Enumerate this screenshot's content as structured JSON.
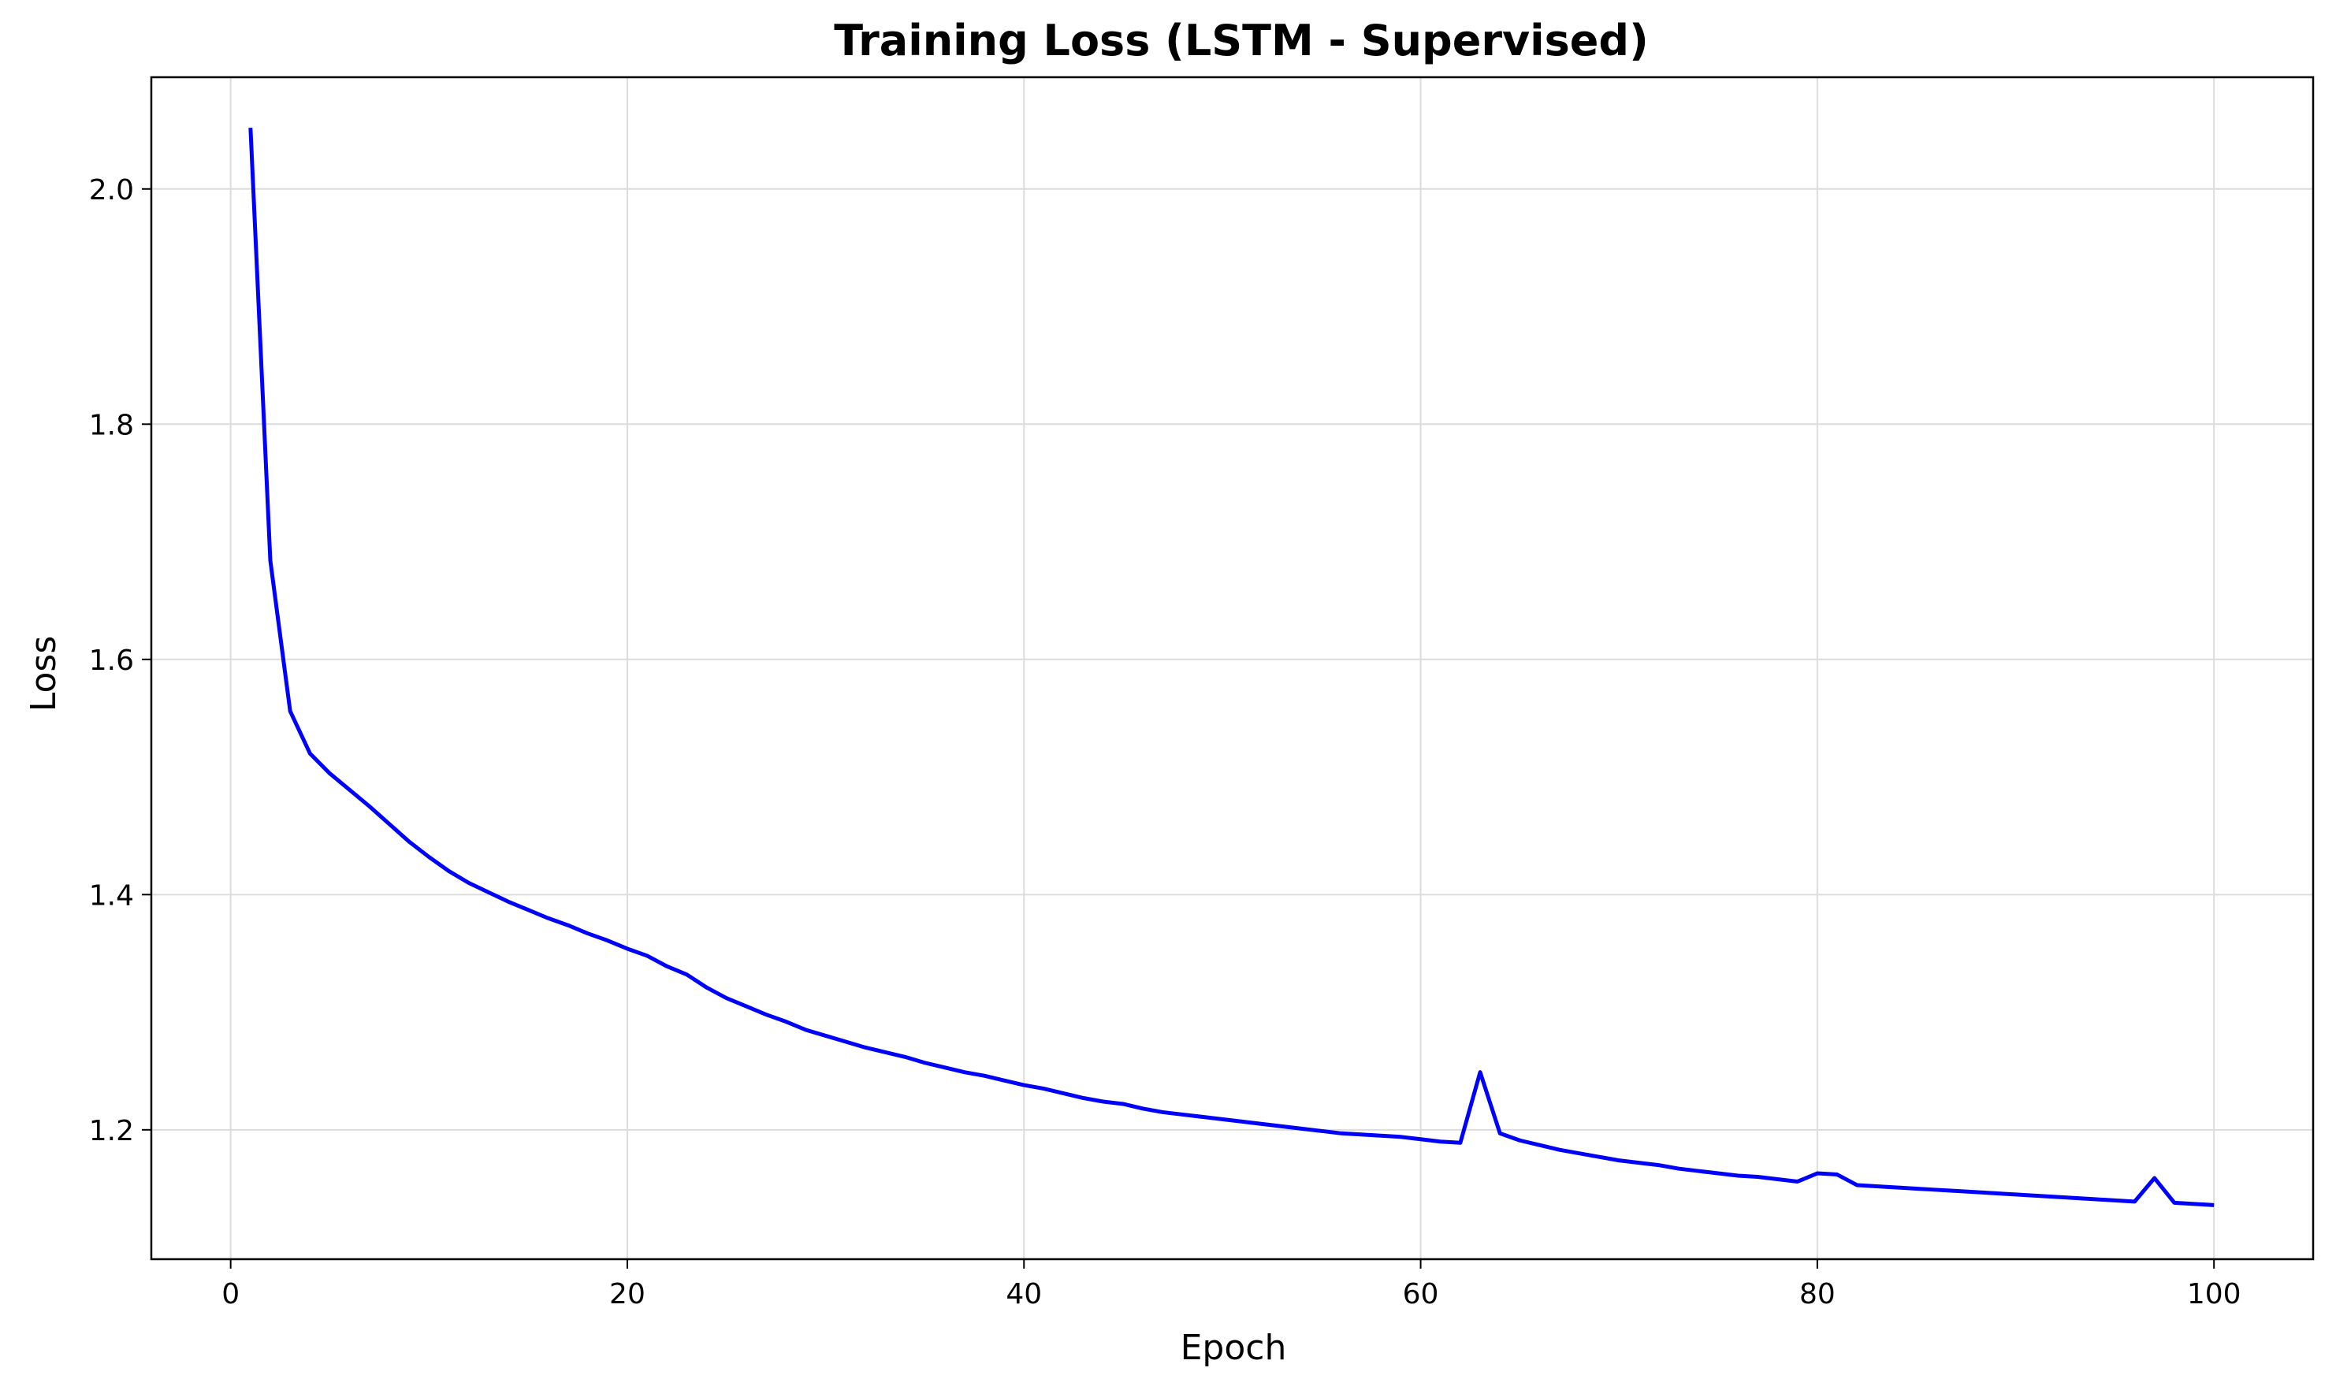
{
  "chart_data": {
    "type": "line",
    "title": "Training Loss (LSTM - Supervised)",
    "xlabel": "Epoch",
    "ylabel": "Loss",
    "xlim": [
      -4,
      105
    ],
    "ylim": [
      1.09,
      2.095
    ],
    "xticks": [
      0,
      20,
      40,
      60,
      80,
      100
    ],
    "yticks": [
      1.2,
      1.4,
      1.6,
      1.8,
      2.0
    ],
    "xtick_labels": [
      "0",
      "20",
      "40",
      "60",
      "80",
      "100"
    ],
    "ytick_labels": [
      "1.2",
      "1.4",
      "1.6",
      "1.8",
      "2.0"
    ],
    "grid": true,
    "series": [
      {
        "color": "#0000ff",
        "x": [
          1,
          2,
          3,
          4,
          5,
          6,
          7,
          8,
          9,
          10,
          11,
          12,
          13,
          14,
          15,
          16,
          17,
          18,
          19,
          20,
          21,
          22,
          23,
          24,
          25,
          26,
          27,
          28,
          29,
          30,
          31,
          32,
          33,
          34,
          35,
          36,
          37,
          38,
          39,
          40,
          41,
          42,
          43,
          44,
          45,
          46,
          47,
          48,
          49,
          50,
          51,
          52,
          53,
          54,
          55,
          56,
          57,
          58,
          59,
          60,
          61,
          62,
          63,
          64,
          65,
          66,
          67,
          68,
          69,
          70,
          71,
          72,
          73,
          74,
          75,
          76,
          77,
          78,
          79,
          80,
          81,
          82,
          83,
          84,
          85,
          86,
          87,
          88,
          89,
          90,
          91,
          92,
          93,
          94,
          95,
          96,
          97,
          98,
          99,
          100
        ],
        "values": [
          2.052,
          1.684,
          1.556,
          1.52,
          1.503,
          1.489,
          1.475,
          1.46,
          1.445,
          1.432,
          1.42,
          1.41,
          1.402,
          1.394,
          1.387,
          1.38,
          1.374,
          1.367,
          1.361,
          1.354,
          1.348,
          1.339,
          1.332,
          1.321,
          1.312,
          1.305,
          1.298,
          1.292,
          1.285,
          1.28,
          1.275,
          1.27,
          1.266,
          1.262,
          1.257,
          1.253,
          1.249,
          1.246,
          1.242,
          1.238,
          1.235,
          1.231,
          1.227,
          1.224,
          1.222,
          1.218,
          1.215,
          1.213,
          1.211,
          1.209,
          1.207,
          1.205,
          1.203,
          1.201,
          1.199,
          1.197,
          1.196,
          1.195,
          1.194,
          1.192,
          1.19,
          1.189,
          1.249,
          1.197,
          1.191,
          1.187,
          1.183,
          1.18,
          1.177,
          1.174,
          1.172,
          1.17,
          1.167,
          1.165,
          1.163,
          1.161,
          1.16,
          1.158,
          1.156,
          1.163,
          1.162,
          1.153,
          1.152,
          1.151,
          1.15,
          1.149,
          1.148,
          1.147,
          1.146,
          1.145,
          1.144,
          1.143,
          1.142,
          1.141,
          1.14,
          1.139,
          1.159,
          1.138,
          1.137,
          1.136
        ]
      }
    ]
  }
}
